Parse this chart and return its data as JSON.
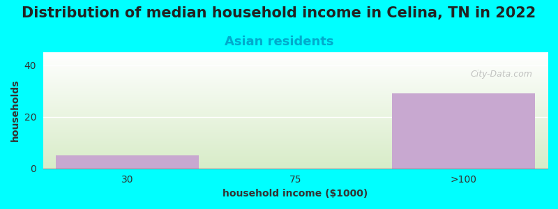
{
  "title": "Distribution of median household income in Celina, TN in 2022",
  "subtitle": "Asian residents",
  "xlabel": "household income ($1000)",
  "ylabel": "households",
  "categories": [
    "30",
    "75",
    ">100"
  ],
  "values": [
    5,
    0,
    29
  ],
  "bar_color": "#C8A8D0",
  "bg_color": "#00FFFF",
  "plot_bg_gradient_top": "#FFFFFF",
  "plot_bg_gradient_bottom": "#D8ECC8",
  "ylim": [
    0,
    45
  ],
  "yticks": [
    0,
    20,
    40
  ],
  "title_fontsize": 15,
  "subtitle_fontsize": 13,
  "axis_label_fontsize": 10,
  "tick_fontsize": 10,
  "watermark": "City-Data.com"
}
